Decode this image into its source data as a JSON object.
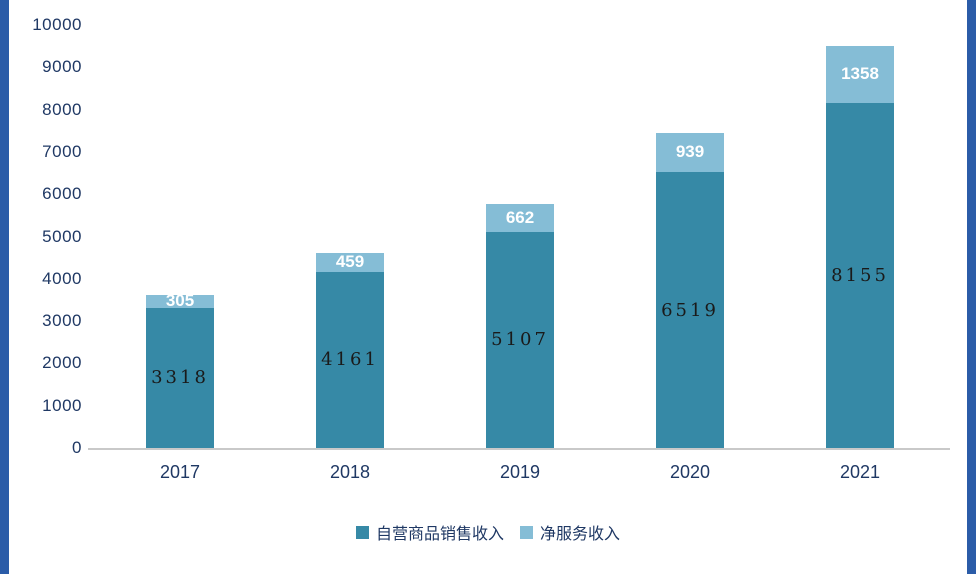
{
  "chart_data": {
    "type": "bar",
    "stacked": true,
    "title": "",
    "categories": [
      "2017",
      "2018",
      "2019",
      "2020",
      "2021"
    ],
    "series": [
      {
        "name": "自营商品销售收入",
        "values": [
          3318,
          4161,
          5107,
          6519,
          8155
        ],
        "color": "#3689a6",
        "label_color": "#1a1a1a"
      },
      {
        "name": "净服务收入",
        "values": [
          305,
          459,
          662,
          939,
          1358
        ],
        "color": "#85bdd6",
        "label_color": "#ffffff"
      }
    ],
    "xlabel": "",
    "ylabel": "",
    "ylim": [
      0,
      10000
    ],
    "ytick_step": 1000,
    "ytick_labels": [
      "0",
      "1000",
      "2000",
      "3000",
      "4000",
      "5000",
      "6000",
      "7000",
      "8000",
      "9000",
      "10000"
    ],
    "grid": false,
    "legend_position": "bottom"
  },
  "colors": {
    "axis_text": "#1f3864",
    "category_text": "#1f3864",
    "legend_text": "#1f3864",
    "axis_line": "#c9c9c9",
    "edge_bar": "#2b5ca8",
    "background": "#ffffff"
  }
}
